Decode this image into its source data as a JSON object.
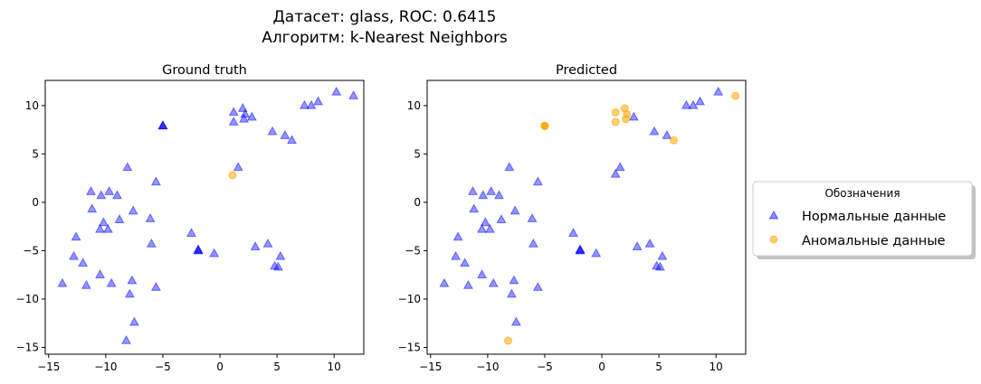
{
  "figure": {
    "title_line1": "Датасет: glass, ROC: 0.6415",
    "title_line2": "Алгоритм: k-Nearest Neighbors"
  },
  "legend": {
    "title": "Обозначения",
    "placement": "center-right",
    "items": [
      {
        "label": "Нормальные данные",
        "marker": "triangle",
        "color": "#0000ff"
      },
      {
        "label": "Аномальные данные",
        "marker": "circle",
        "color": "#ffa500"
      }
    ]
  },
  "chart_data": [
    {
      "type": "scatter",
      "title": "Ground truth",
      "xlabel": "",
      "ylabel": "",
      "xlim": [
        -15.3,
        12.6
      ],
      "ylim": [
        -15.7,
        12.6
      ],
      "xticks": [
        -15,
        -10,
        -5,
        0,
        5,
        10
      ],
      "yticks": [
        -15,
        -10,
        -5,
        0,
        5,
        10
      ],
      "grid": false,
      "series": [
        {
          "name": "Нормальные данные",
          "marker": "triangle",
          "color": "#0000ff",
          "points": [
            [
              -5.0,
              7.9
            ],
            [
              -5.0,
              7.9
            ],
            [
              -5.0,
              7.9
            ],
            [
              1.2,
              9.3
            ],
            [
              2.0,
              9.7
            ],
            [
              2.2,
              9.1
            ],
            [
              1.2,
              8.3
            ],
            [
              2.1,
              8.6
            ],
            [
              2.8,
              8.8
            ],
            [
              7.4,
              10.0
            ],
            [
              8.0,
              10.0
            ],
            [
              8.6,
              10.4
            ],
            [
              10.2,
              11.4
            ],
            [
              11.7,
              11.0
            ],
            [
              4.6,
              7.3
            ],
            [
              5.7,
              6.9
            ],
            [
              6.3,
              6.4
            ],
            [
              1.6,
              3.6
            ],
            [
              -8.1,
              3.6
            ],
            [
              -5.6,
              2.1
            ],
            [
              -11.3,
              1.1
            ],
            [
              -10.4,
              0.7
            ],
            [
              -9.7,
              1.1
            ],
            [
              -9.0,
              0.7
            ],
            [
              -11.2,
              -0.7
            ],
            [
              -10.2,
              -2.1
            ],
            [
              -8.8,
              -1.8
            ],
            [
              -7.6,
              -0.9
            ],
            [
              -6.1,
              -1.7
            ],
            [
              -10.5,
              -2.8
            ],
            [
              -9.8,
              -2.8
            ],
            [
              -2.5,
              -3.2
            ],
            [
              -12.6,
              -3.6
            ],
            [
              -6.0,
              -4.3
            ],
            [
              -1.9,
              -4.9
            ],
            [
              -1.9,
              -5.0
            ],
            [
              -1.9,
              -5.0
            ],
            [
              -0.5,
              -5.3
            ],
            [
              3.1,
              -4.6
            ],
            [
              4.2,
              -4.3
            ],
            [
              5.3,
              -5.6
            ],
            [
              4.8,
              -6.6
            ],
            [
              5.1,
              -6.7
            ],
            [
              -12.8,
              -5.6
            ],
            [
              -12.0,
              -6.3
            ],
            [
              -13.8,
              -8.4
            ],
            [
              -11.7,
              -8.6
            ],
            [
              -10.5,
              -7.5
            ],
            [
              -9.5,
              -8.4
            ],
            [
              -7.7,
              -8.1
            ],
            [
              -5.6,
              -8.8
            ],
            [
              -7.9,
              -9.5
            ],
            [
              -7.5,
              -12.4
            ],
            [
              -8.2,
              -14.3
            ]
          ]
        },
        {
          "name": "Аномальные данные",
          "marker": "circle",
          "color": "#ffa500",
          "points": [
            [
              1.1,
              2.8
            ]
          ]
        }
      ]
    },
    {
      "type": "scatter",
      "title": "Predicted",
      "xlabel": "",
      "ylabel": "",
      "xlim": [
        -15.3,
        12.6
      ],
      "ylim": [
        -15.7,
        12.6
      ],
      "xticks": [
        -15,
        -10,
        -5,
        0,
        5,
        10
      ],
      "yticks": [
        -15,
        -10,
        -5,
        0,
        5,
        10
      ],
      "grid": false,
      "series": [
        {
          "name": "Нормальные данные",
          "marker": "triangle",
          "color": "#0000ff",
          "points": [
            [
              2.8,
              8.8
            ],
            [
              7.4,
              10.0
            ],
            [
              8.0,
              10.0
            ],
            [
              8.6,
              10.4
            ],
            [
              10.2,
              11.4
            ],
            [
              4.6,
              7.3
            ],
            [
              5.7,
              6.9
            ],
            [
              1.2,
              2.9
            ],
            [
              1.6,
              3.6
            ],
            [
              -8.1,
              3.6
            ],
            [
              -5.6,
              2.1
            ],
            [
              -11.3,
              1.1
            ],
            [
              -10.4,
              0.7
            ],
            [
              -9.7,
              1.1
            ],
            [
              -9.0,
              0.7
            ],
            [
              -11.2,
              -0.7
            ],
            [
              -10.2,
              -2.1
            ],
            [
              -8.8,
              -1.8
            ],
            [
              -7.6,
              -0.9
            ],
            [
              -6.1,
              -1.7
            ],
            [
              -10.5,
              -2.8
            ],
            [
              -9.8,
              -2.8
            ],
            [
              -2.5,
              -3.2
            ],
            [
              -12.6,
              -3.6
            ],
            [
              -6.0,
              -4.3
            ],
            [
              -1.9,
              -4.9
            ],
            [
              -1.9,
              -5.0
            ],
            [
              -1.9,
              -5.0
            ],
            [
              -0.5,
              -5.3
            ],
            [
              3.1,
              -4.6
            ],
            [
              4.2,
              -4.3
            ],
            [
              5.3,
              -5.6
            ],
            [
              4.8,
              -6.6
            ],
            [
              5.1,
              -6.7
            ],
            [
              -12.8,
              -5.6
            ],
            [
              -12.0,
              -6.3
            ],
            [
              -13.8,
              -8.4
            ],
            [
              -11.7,
              -8.6
            ],
            [
              -10.5,
              -7.5
            ],
            [
              -9.5,
              -8.4
            ],
            [
              -7.7,
              -8.1
            ],
            [
              -5.6,
              -8.8
            ],
            [
              -7.9,
              -9.5
            ],
            [
              -7.5,
              -12.4
            ]
          ]
        },
        {
          "name": "Аномальные данные",
          "marker": "circle",
          "color": "#ffa500",
          "points": [
            [
              -5.0,
              7.9
            ],
            [
              -5.0,
              7.9
            ],
            [
              -5.0,
              7.9
            ],
            [
              1.2,
              9.3
            ],
            [
              2.0,
              9.7
            ],
            [
              2.2,
              9.1
            ],
            [
              1.2,
              8.3
            ],
            [
              2.1,
              8.6
            ],
            [
              11.7,
              11.0
            ],
            [
              6.3,
              6.4
            ],
            [
              -8.2,
              -14.3
            ]
          ]
        }
      ]
    }
  ]
}
